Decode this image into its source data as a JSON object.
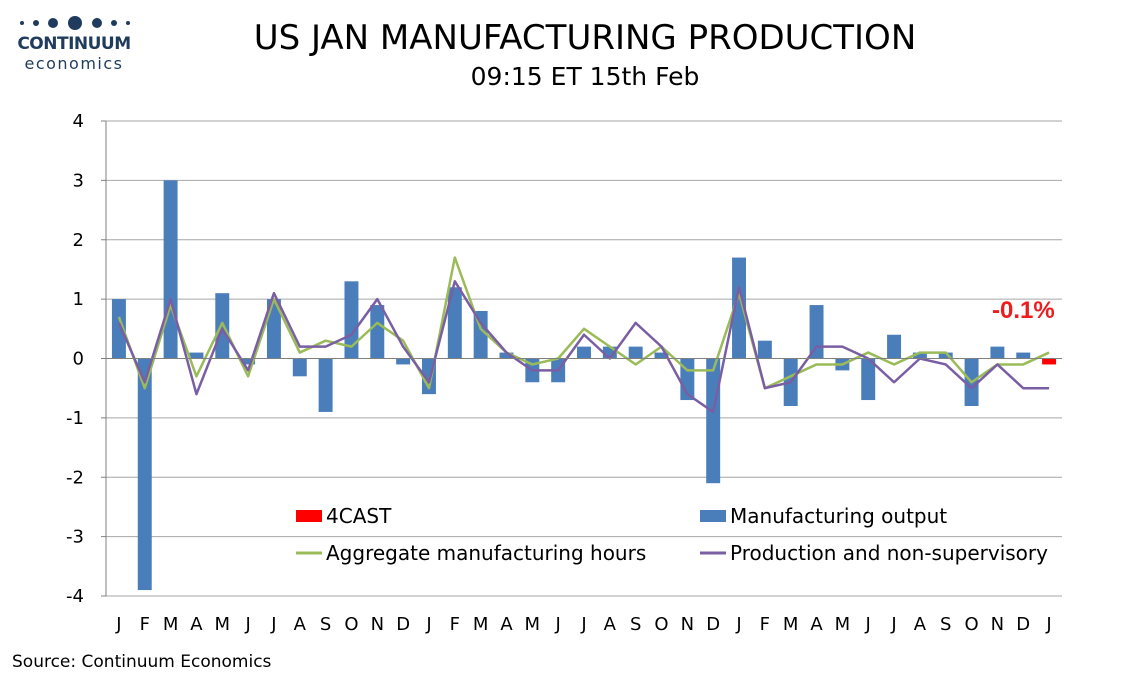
{
  "logo": {
    "brand": "CONTINUUM",
    "sub": "economics",
    "color": "#1f3c5e"
  },
  "title": "US JAN MANUFACTURING PRODUCTION",
  "subtitle": "09:15 ET 15th Feb",
  "source": "Source: Continuum Economics",
  "chart_data": {
    "type": "bar",
    "categories": [
      "J",
      "F",
      "M",
      "A",
      "M",
      "J",
      "J",
      "A",
      "S",
      "O",
      "N",
      "D",
      "J",
      "F",
      "M",
      "A",
      "M",
      "J",
      "J",
      "A",
      "S",
      "O",
      "N",
      "D",
      "J",
      "F",
      "M",
      "A",
      "M",
      "J",
      "J",
      "A",
      "S",
      "O",
      "N",
      "D",
      "J"
    ],
    "ylim": [
      -4,
      4
    ],
    "yticks": [
      4,
      3,
      2,
      1,
      0,
      -1,
      -2,
      -3,
      -4
    ],
    "grid": true,
    "series": [
      {
        "name": "Manufacturing output",
        "type": "bar",
        "color": "#4a7ebb",
        "values": [
          1.0,
          -3.9,
          3.0,
          0.1,
          1.1,
          -0.1,
          1.0,
          -0.3,
          -0.9,
          1.3,
          0.9,
          -0.1,
          -0.6,
          1.2,
          0.8,
          0.1,
          -0.4,
          -0.4,
          0.2,
          0.2,
          0.2,
          0.1,
          -0.7,
          -2.1,
          1.7,
          0.3,
          -0.8,
          0.9,
          -0.2,
          -0.7,
          0.4,
          0.1,
          0.1,
          -0.8,
          0.2,
          0.1,
          null
        ]
      },
      {
        "name": "4CAST",
        "type": "bar",
        "color": "#ff0000",
        "values": [
          null,
          null,
          null,
          null,
          null,
          null,
          null,
          null,
          null,
          null,
          null,
          null,
          null,
          null,
          null,
          null,
          null,
          null,
          null,
          null,
          null,
          null,
          null,
          null,
          null,
          null,
          null,
          null,
          null,
          null,
          null,
          null,
          null,
          null,
          null,
          null,
          -0.1
        ]
      },
      {
        "name": "Aggregate manufacturing hours",
        "type": "line",
        "color": "#9bbb59",
        "values": [
          0.7,
          -0.5,
          0.9,
          -0.3,
          0.6,
          -0.3,
          1.0,
          0.1,
          0.3,
          0.2,
          0.6,
          0.3,
          -0.5,
          1.7,
          0.5,
          0.1,
          -0.1,
          0.0,
          0.5,
          0.2,
          -0.1,
          0.2,
          -0.2,
          -0.2,
          1.1,
          -0.5,
          -0.3,
          -0.1,
          -0.1,
          0.1,
          -0.1,
          0.1,
          0.1,
          -0.4,
          -0.1,
          -0.1,
          0.1
        ]
      },
      {
        "name": "Production and non-supervisory",
        "type": "line",
        "color": "#7a5ea3",
        "values": [
          0.6,
          -0.4,
          1.0,
          -0.6,
          0.5,
          -0.2,
          1.1,
          0.2,
          0.2,
          0.4,
          1.0,
          0.2,
          -0.4,
          1.3,
          0.6,
          0.1,
          -0.2,
          -0.2,
          0.4,
          0.0,
          0.6,
          0.2,
          -0.6,
          -0.9,
          1.2,
          -0.5,
          -0.4,
          0.2,
          0.2,
          0.0,
          -0.4,
          0.0,
          -0.1,
          -0.5,
          -0.1,
          -0.5,
          -0.5
        ]
      }
    ],
    "annotation": {
      "text": "-0.1%",
      "color": "#ee1c1c"
    },
    "legend": [
      "4CAST",
      "Manufacturing output",
      "Aggregate manufacturing hours",
      "Production and non-supervisory"
    ],
    "legend_placement": "bottom-inside"
  }
}
